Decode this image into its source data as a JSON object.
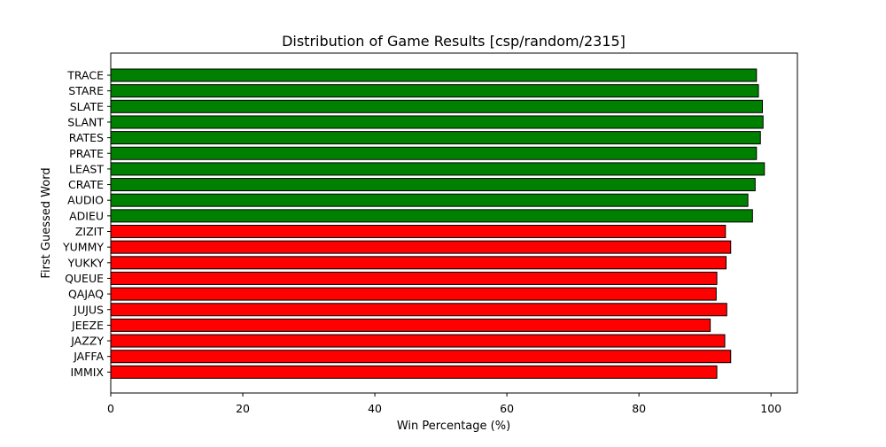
{
  "chart_data": {
    "type": "bar",
    "orientation": "horizontal",
    "title": "Distribution of Game Results [csp/random/2315]",
    "xlabel": "Win Percentage (%)",
    "ylabel": "First Guessed Word",
    "xlim": [
      0,
      104
    ],
    "xticks": [
      0,
      20,
      40,
      60,
      80,
      100
    ],
    "grid": false,
    "categories": [
      "TRACE",
      "STARE",
      "SLATE",
      "SLANT",
      "RATES",
      "PRATE",
      "LEAST",
      "CRATE",
      "AUDIO",
      "ADIEU",
      "ZIZIT",
      "YUMMY",
      "YUKKY",
      "QUEUE",
      "QAJAQ",
      "JUJUS",
      "JEEZE",
      "JAZZY",
      "JAFFA",
      "IMMIX"
    ],
    "values": [
      97.8,
      98.1,
      98.7,
      98.8,
      98.4,
      97.8,
      99.0,
      97.6,
      96.5,
      97.2,
      93.1,
      93.9,
      93.2,
      91.8,
      91.7,
      93.3,
      90.8,
      93.0,
      93.9,
      91.8
    ],
    "bar_colors": [
      "#008000",
      "#008000",
      "#008000",
      "#008000",
      "#008000",
      "#008000",
      "#008000",
      "#008000",
      "#008000",
      "#008000",
      "#ff0000",
      "#ff0000",
      "#ff0000",
      "#ff0000",
      "#ff0000",
      "#ff0000",
      "#ff0000",
      "#ff0000",
      "#ff0000",
      "#ff0000"
    ],
    "edge_color": "#000000"
  }
}
